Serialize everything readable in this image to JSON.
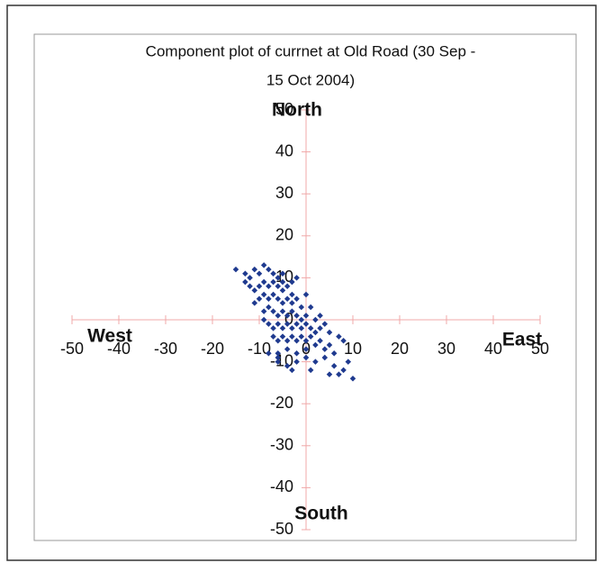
{
  "chart_data": {
    "type": "scatter",
    "title": [
      "Component plot of currnet at Old Road (30 Sep -",
      "15 Oct 2004)"
    ],
    "annotations": {
      "north": "North",
      "south": "South",
      "west": "West",
      "east": "East"
    },
    "xlim": [
      -50,
      50
    ],
    "ylim": [
      -50,
      50
    ],
    "xticks": [
      -50,
      -40,
      -30,
      -20,
      -10,
      0,
      10,
      20,
      30,
      40,
      50
    ],
    "yticks": [
      -50,
      -40,
      -30,
      -20,
      -10,
      0,
      10,
      20,
      30,
      40,
      50
    ],
    "series": [
      {
        "color": "#1f3a8f",
        "x": [
          -15,
          -13,
          -12,
          -11,
          -10,
          -9,
          -8,
          -7,
          -6,
          -5,
          -12,
          -11,
          -10,
          -9,
          -8,
          -7,
          -6,
          -5,
          -4,
          -3,
          -10,
          -9,
          -8,
          -7,
          -6,
          -5,
          -4,
          -3,
          -2,
          -1,
          -9,
          -8,
          -7,
          -6,
          -5,
          -4,
          -3,
          -2,
          -1,
          0,
          -8,
          -7,
          -6,
          -5,
          -4,
          -3,
          -2,
          -1,
          0,
          1,
          -7,
          -6,
          -5,
          -4,
          -3,
          -2,
          -1,
          0,
          1,
          2,
          -8,
          -6,
          -4,
          -2,
          0,
          2,
          3,
          4,
          5,
          6,
          -6,
          -4,
          -2,
          0,
          2,
          4,
          6,
          8,
          10,
          7,
          -3,
          1,
          -11,
          -13,
          3,
          5,
          7,
          8,
          2,
          4,
          -2,
          0,
          1,
          3,
          -5,
          -3,
          9,
          5,
          -6,
          -9
        ],
        "y": [
          12,
          11,
          10,
          12,
          11,
          13,
          12,
          11,
          10,
          9,
          8,
          7,
          8,
          9,
          8,
          9,
          8,
          7,
          8,
          6,
          5,
          6,
          5,
          6,
          5,
          4,
          5,
          4,
          5,
          3,
          2,
          3,
          2,
          1,
          2,
          1,
          2,
          1,
          0,
          1,
          -1,
          -2,
          -1,
          -2,
          -1,
          -2,
          -1,
          -2,
          -1,
          -2,
          -4,
          -5,
          -4,
          -5,
          -4,
          -5,
          -4,
          -5,
          -4,
          -3,
          -8,
          -9,
          -7,
          -8,
          -7,
          -6,
          -5,
          -7,
          -6,
          -8,
          -10,
          -11,
          -10,
          -9,
          -10,
          -9,
          -11,
          -12,
          -14,
          -13,
          -12,
          -12,
          4,
          9,
          -2,
          -3,
          -4,
          -5,
          0,
          -1,
          10,
          6,
          3,
          1,
          11,
          9,
          -10,
          -13,
          -8,
          0
        ]
      }
    ]
  }
}
